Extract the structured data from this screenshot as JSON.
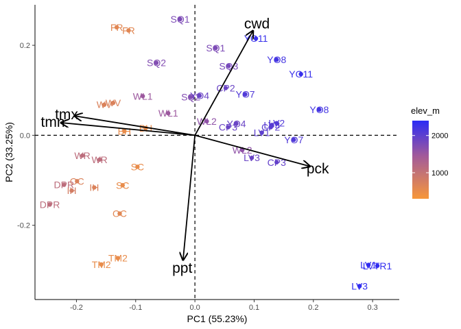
{
  "chart_data": {
    "type": "scatter",
    "title": "",
    "xlabel": "PC1 (55.23%)",
    "ylabel": "PC2 (33.25%)",
    "xlim": [
      -0.27,
      0.345
    ],
    "ylim": [
      -0.365,
      0.29
    ],
    "x_ticks": [
      -0.2,
      -0.1,
      0.0,
      0.1,
      0.2,
      0.3
    ],
    "x_tick_labels": [
      "-0.2",
      "-0.1",
      "0.0",
      "0.1",
      "0.2",
      "0.3"
    ],
    "y_ticks": [
      -0.2,
      0.0,
      0.2
    ],
    "y_tick_labels": [
      "-0.2",
      "0.0",
      "0.2"
    ],
    "reference_lines": {
      "x": 0,
      "y": 0,
      "style": "dashed"
    },
    "grid": false,
    "legend": {
      "title": "elev_m",
      "placement": "right",
      "ticks": [
        1000,
        2000
      ],
      "tick_labels": [
        "1000",
        "2000"
      ],
      "range": [
        300,
        2400
      ],
      "color_low": "#f7973a",
      "color_high": "#2b2bf5"
    },
    "points": [
      {
        "label": "SQ1",
        "x": -0.025,
        "y": 0.258,
        "elev": 1750
      },
      {
        "label": "SQ1",
        "x": 0.035,
        "y": 0.194,
        "elev": 1750
      },
      {
        "label": "SQ2",
        "x": -0.065,
        "y": 0.161,
        "elev": 1700
      },
      {
        "label": "SQ2",
        "x": -0.007,
        "y": 0.085,
        "elev": 1700
      },
      {
        "label": "SQ3",
        "x": 0.057,
        "y": 0.154,
        "elev": 1800
      },
      {
        "label": "FR",
        "x": -0.132,
        "y": 0.24,
        "elev": 600
      },
      {
        "label": "FR",
        "x": -0.112,
        "y": 0.233,
        "elev": 600
      },
      {
        "label": "YO11",
        "x": 0.103,
        "y": 0.215,
        "elev": 2300
      },
      {
        "label": "YO11",
        "x": 0.179,
        "y": 0.136,
        "elev": 2300
      },
      {
        "label": "YO8",
        "x": 0.138,
        "y": 0.168,
        "elev": 2200
      },
      {
        "label": "YO8",
        "x": 0.21,
        "y": 0.057,
        "elev": 2200
      },
      {
        "label": "YO7",
        "x": 0.085,
        "y": 0.091,
        "elev": 2100
      },
      {
        "label": "YO7",
        "x": 0.167,
        "y": -0.01,
        "elev": 2100
      },
      {
        "label": "YO4",
        "x": 0.008,
        "y": 0.088,
        "elev": 1900
      },
      {
        "label": "YO4",
        "x": 0.07,
        "y": 0.026,
        "elev": 1900
      },
      {
        "label": "CP2",
        "x": 0.052,
        "y": 0.105,
        "elev": 1900
      },
      {
        "label": "CP2",
        "x": 0.128,
        "y": 0.018,
        "elev": 2000
      },
      {
        "label": "CP3",
        "x": 0.056,
        "y": 0.018,
        "elev": 1900
      },
      {
        "label": "CP3",
        "x": 0.138,
        "y": -0.06,
        "elev": 1950
      },
      {
        "label": "LV2",
        "x": 0.138,
        "y": 0.027,
        "elev": 2100
      },
      {
        "label": "LV3",
        "x": 0.13,
        "y": 0.023,
        "elev": 2050
      },
      {
        "label": "LV1",
        "x": 0.113,
        "y": 0.006,
        "elev": 2000
      },
      {
        "label": "LV3",
        "x": 0.096,
        "y": -0.05,
        "elev": 1900
      },
      {
        "label": "LV1",
        "x": 0.293,
        "y": -0.288,
        "elev": 2350
      },
      {
        "label": "LVTR1",
        "x": 0.308,
        "y": -0.29,
        "elev": 2350
      },
      {
        "label": "LV3",
        "x": 0.278,
        "y": -0.335,
        "elev": 2350
      },
      {
        "label": "WL2",
        "x": 0.02,
        "y": 0.031,
        "elev": 1600
      },
      {
        "label": "WL2",
        "x": 0.08,
        "y": -0.033,
        "elev": 1600
      },
      {
        "label": "WL1",
        "x": -0.088,
        "y": 0.087,
        "elev": 1500
      },
      {
        "label": "WL1",
        "x": -0.045,
        "y": 0.049,
        "elev": 1500
      },
      {
        "label": "WV",
        "x": -0.138,
        "y": 0.072,
        "elev": 700
      },
      {
        "label": "WV",
        "x": -0.153,
        "y": 0.068,
        "elev": 700
      },
      {
        "label": "BH",
        "x": -0.119,
        "y": 0.009,
        "elev": 500
      },
      {
        "label": "BH",
        "x": -0.083,
        "y": 0.016,
        "elev": 500
      },
      {
        "label": "WR",
        "x": -0.19,
        "y": -0.045,
        "elev": 1100
      },
      {
        "label": "WR",
        "x": -0.161,
        "y": -0.054,
        "elev": 1100
      },
      {
        "label": "SC",
        "x": -0.097,
        "y": -0.07,
        "elev": 500
      },
      {
        "label": "SC",
        "x": -0.122,
        "y": -0.111,
        "elev": 500
      },
      {
        "label": "OC",
        "x": -0.199,
        "y": -0.102,
        "elev": 700
      },
      {
        "label": "OC",
        "x": -0.127,
        "y": -0.174,
        "elev": 600
      },
      {
        "label": "DPR",
        "x": -0.221,
        "y": -0.11,
        "elev": 1100
      },
      {
        "label": "DPR",
        "x": -0.245,
        "y": -0.154,
        "elev": 1100
      },
      {
        "label": "IH",
        "x": -0.208,
        "y": -0.123,
        "elev": 800
      },
      {
        "label": "IH",
        "x": -0.17,
        "y": -0.116,
        "elev": 700
      },
      {
        "label": "TM2",
        "x": -0.13,
        "y": -0.273,
        "elev": 500
      },
      {
        "label": "TM2",
        "x": -0.158,
        "y": -0.287,
        "elev": 500
      }
    ],
    "vectors": [
      {
        "label": "cwd",
        "x": 0.098,
        "y": 0.232
      },
      {
        "label": "pck",
        "x": 0.194,
        "y": -0.069
      },
      {
        "label": "ppt",
        "x": -0.02,
        "y": -0.277
      },
      {
        "label": "tmn",
        "x": -0.226,
        "y": 0.028
      },
      {
        "label": "tmx",
        "x": -0.203,
        "y": 0.043
      }
    ]
  }
}
